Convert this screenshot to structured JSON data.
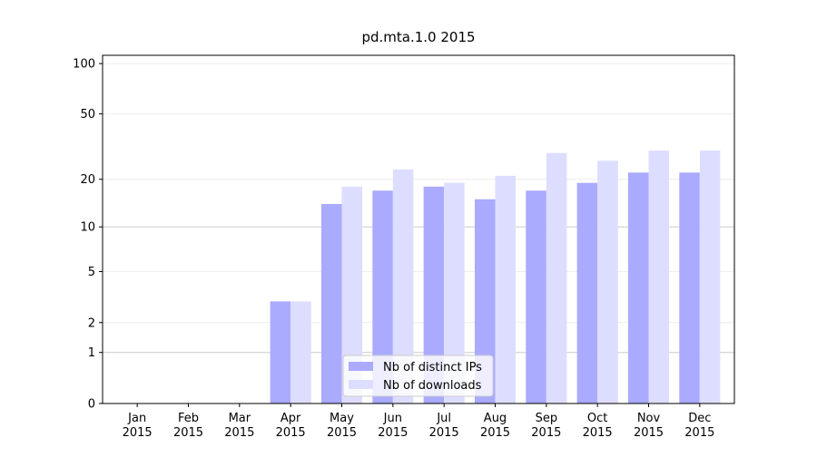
{
  "chart_data": {
    "type": "bar",
    "title": "pd.mta.1.0 2015",
    "categories": [
      "Jan\n2015",
      "Feb\n2015",
      "Mar\n2015",
      "Apr\n2015",
      "May\n2015",
      "Jun\n2015",
      "Jul\n2015",
      "Aug\n2015",
      "Sep\n2015",
      "Oct\n2015",
      "Nov\n2015",
      "Dec\n2015"
    ],
    "series": [
      {
        "name": "Nb of distinct IPs",
        "color": "#aaaaff",
        "values": [
          0,
          0,
          0,
          3,
          14,
          17,
          18,
          15,
          17,
          19,
          22,
          22
        ]
      },
      {
        "name": "Nb of downloads",
        "color": "#ddddff",
        "values": [
          0,
          0,
          0,
          3,
          18,
          23,
          19,
          21,
          29,
          26,
          30,
          30
        ]
      }
    ],
    "yscale": "log1p",
    "ylim": [
      0,
      112
    ],
    "yticks": [
      0,
      1,
      2,
      5,
      10,
      20,
      50,
      100
    ],
    "grid": true,
    "legend": "lower center"
  }
}
